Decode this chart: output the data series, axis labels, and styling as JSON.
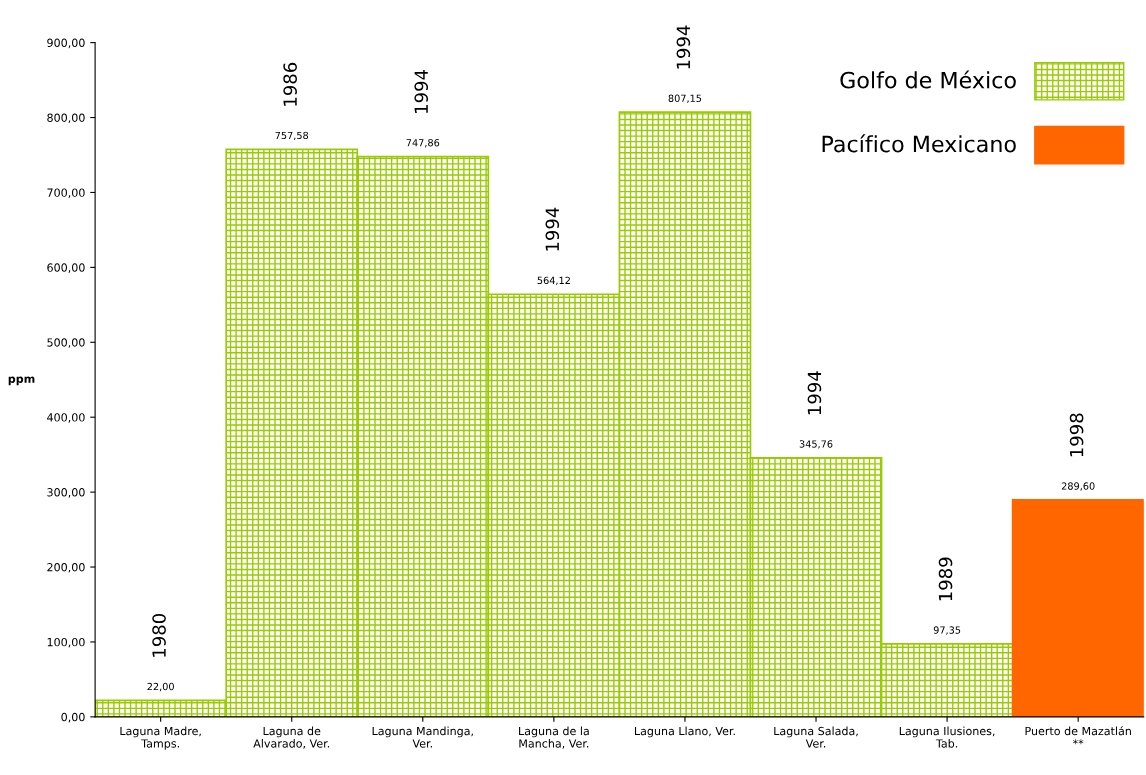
{
  "chart_data": {
    "type": "bar",
    "ylabel": "ppm",
    "categories": [
      "Laguna Madre,\nTamps.",
      "Laguna de\nAlvarado, Ver.",
      "Laguna Mandinga,\nVer.",
      "Laguna de la\nMancha, Ver.",
      "Laguna Llano, Ver.",
      "Laguna Salada,\nVer.",
      "Laguna Ilusiones,\nTab.",
      "Puerto de Mazatlán\n**"
    ],
    "series": [
      {
        "name": "Golfo de México",
        "color": "#99cc00",
        "values": [
          22.0,
          757.58,
          747.86,
          564.12,
          807.15,
          345.76,
          97.35,
          null
        ],
        "value_labels": [
          "22,00",
          "757,58",
          "747,86",
          "564,12",
          "807,15",
          "345,76",
          "97,35",
          null
        ]
      },
      {
        "name": "Pacífico Mexicano",
        "color": "#ff6600",
        "values": [
          null,
          null,
          null,
          null,
          null,
          null,
          null,
          289.6
        ],
        "value_labels": [
          null,
          null,
          null,
          null,
          null,
          null,
          null,
          "289,60"
        ]
      }
    ],
    "ylim": [
      0,
      900
    ],
    "yticks": [
      {
        "value": 0,
        "label": "0,00"
      },
      {
        "value": 100,
        "label": "100,00"
      },
      {
        "value": 200,
        "label": "200,00"
      },
      {
        "value": 300,
        "label": "300,00"
      },
      {
        "value": 400,
        "label": "400,00"
      },
      {
        "value": 500,
        "label": "500,00"
      },
      {
        "value": 600,
        "label": "600,00"
      },
      {
        "value": 700,
        "label": "700,00"
      },
      {
        "value": 800,
        "label": "800,00"
      },
      {
        "value": 900,
        "label": "900,00"
      }
    ],
    "annotations": [
      "1980",
      "1986",
      "1994",
      "1994",
      "1994",
      "1994",
      "1989",
      "1998"
    ],
    "grid": false,
    "legend": "top right"
  }
}
